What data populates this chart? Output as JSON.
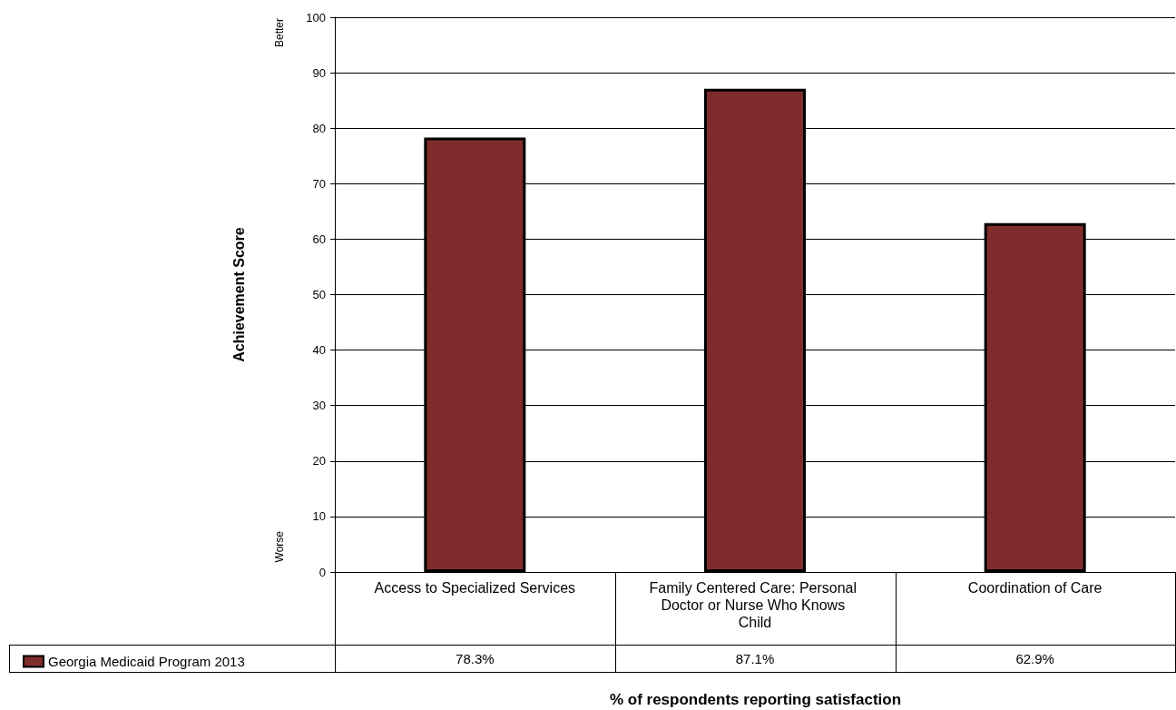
{
  "chart_data": {
    "type": "bar",
    "ylabel": "Achievement Score",
    "annotations": [
      "Better",
      "Worse",
      "% of respondents reporting satisfaction"
    ],
    "categories": [
      "Access to Specialized Services",
      "Family Centered Care: Personal Doctor or Nurse Who Knows Child",
      "Coordination of Care"
    ],
    "series": [
      {
        "name": "Georgia Medicaid Program 2013",
        "color": "#7f2c2c",
        "values": [
          78.3,
          87.1,
          62.9
        ],
        "value_labels": [
          "78.3%",
          "87.1%",
          "62.9%"
        ]
      }
    ],
    "ylim": [
      0,
      100
    ],
    "yticks": [
      0,
      10,
      20,
      30,
      40,
      50,
      60,
      70,
      80,
      90,
      100
    ],
    "grid": "y",
    "legend": "bottom left"
  }
}
